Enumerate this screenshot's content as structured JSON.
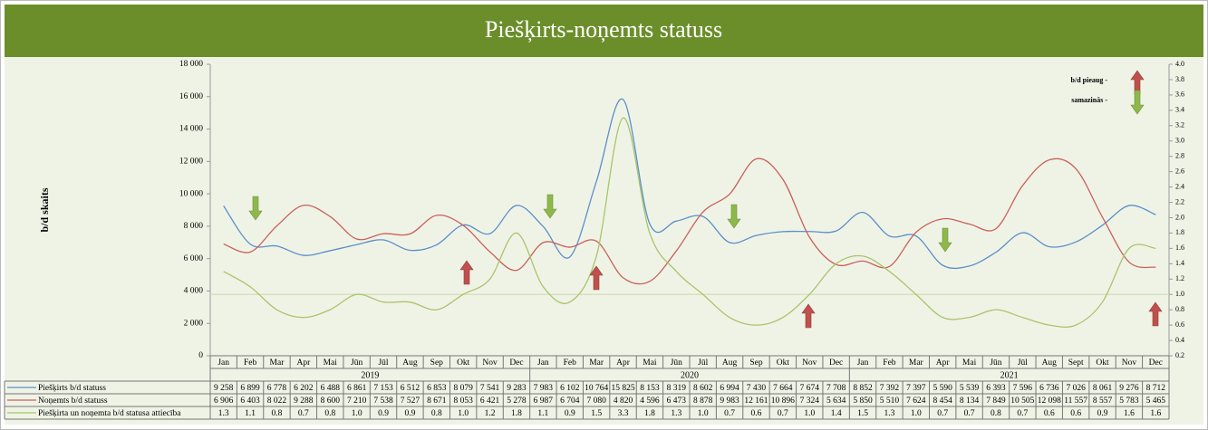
{
  "chart_data": {
    "type": "line",
    "title": "Piešķirts-noņemts statuss",
    "y_label": "b/d skaits",
    "legend_notes": [
      "b/d pieaug -",
      "samazinās -"
    ],
    "categories": [
      "Jan",
      "Feb",
      "Mar",
      "Apr",
      "Mai",
      "Jūn",
      "Jūl",
      "Aug",
      "Sep",
      "Okt",
      "Nov",
      "Dec",
      "Jan",
      "Feb",
      "Mar",
      "Apr",
      "Mai",
      "Jūn",
      "Jūl",
      "Aug",
      "Sep",
      "Okt",
      "Nov",
      "Dec",
      "Jan",
      "Feb",
      "Mar",
      "Apr",
      "Mai",
      "Jūn",
      "Jūl",
      "Aug",
      "Sept",
      "Okt",
      "Nov",
      "Dec"
    ],
    "years": [
      "2019",
      "2020",
      "2021"
    ],
    "ylim": [
      0,
      18000
    ],
    "yticks": [
      0,
      {
        "value": 2000,
        "label": "2 000"
      },
      {
        "value": 4000,
        "label": "4 000"
      },
      {
        "value": 6000,
        "label": "6 000"
      },
      {
        "value": 8000,
        "label": "8 000"
      },
      {
        "value": 10000,
        "label": "10 000"
      },
      {
        "value": 12000,
        "label": "12 000"
      },
      {
        "value": 14000,
        "label": "14 000"
      },
      {
        "value": 16000,
        "label": "16 000"
      },
      {
        "value": 18000,
        "label": "18 000"
      }
    ],
    "y2lim": [
      0.2,
      4.0
    ],
    "y2ticks": [
      0.2,
      0.4,
      0.6,
      0.8,
      {
        "value": 1,
        "label": "1.0"
      },
      1.2,
      1.4,
      1.6,
      1.8,
      {
        "value": 2,
        "label": "2.0"
      },
      2.2,
      2.4,
      2.6,
      2.8,
      {
        "value": 3,
        "label": "3.0"
      },
      3.2,
      3.4,
      3.6,
      3.8,
      {
        "value": 4,
        "label": "4.0"
      }
    ],
    "y2_reference": 1,
    "series": [
      {
        "name": "Piešķirts b/d statuss",
        "color": "#5b8fc9",
        "values": [
          9258,
          6899,
          6778,
          6202,
          6488,
          6861,
          7153,
          6512,
          6853,
          8079,
          7541,
          9283,
          7983,
          6102,
          10764,
          15825,
          8153,
          8319,
          8602,
          6994,
          7430,
          7664,
          7674,
          7708,
          8852,
          7392,
          7397,
          5590,
          5539,
          6393,
          7596,
          6736,
          7026,
          8061,
          9276,
          8712
        ],
        "value_labels": [
          "9 258",
          "6 899",
          "6 778",
          "6 202",
          "6 488",
          "6 861",
          "7 153",
          "6 512",
          "6 853",
          "8 079",
          "7 541",
          "9 283",
          "7 983",
          "6 102",
          "10 764",
          "15 825",
          "8 153",
          "8 319",
          "8 602",
          "6 994",
          "7 430",
          "7 664",
          "7 674",
          "7 708",
          "8 852",
          "7 392",
          "7 397",
          "5 590",
          "5 539",
          "6 393",
          "7 596",
          "6 736",
          "7 026",
          "8 061",
          "9 276",
          "8 712"
        ]
      },
      {
        "name": "Noņemts b/d statuss",
        "color": "#c9605a",
        "values": [
          6906,
          6403,
          8022,
          9288,
          8600,
          7210,
          7538,
          7527,
          8671,
          8053,
          6421,
          5278,
          6987,
          6704,
          7080,
          4820,
          4596,
          6473,
          8878,
          9983,
          12161,
          10896,
          7324,
          5634,
          5850,
          5510,
          7624,
          8454,
          8134,
          7849,
          10505,
          12098,
          11557,
          8557,
          5783,
          5465
        ],
        "value_labels": [
          "6 906",
          "6 403",
          "8 022",
          "9 288",
          "8 600",
          "7 210",
          "7 538",
          "7 527",
          "8 671",
          "8 053",
          "6 421",
          "5 278",
          "6 987",
          "6 704",
          "7 080",
          "4 820",
          "4 596",
          "6 473",
          "8 878",
          "9 983",
          "12 161",
          "10 896",
          "7 324",
          "5 634",
          "5 850",
          "5 510",
          "7 624",
          "8 454",
          "8 134",
          "7 849",
          "10 505",
          "12 098",
          "11 557",
          "8 557",
          "5 783",
          "5 465"
        ]
      },
      {
        "name": "Piešķirta un noņemta b/d statusa attiecība",
        "color": "#a9c46a",
        "axis": "y2",
        "values": [
          1.3,
          1.1,
          0.8,
          0.7,
          0.8,
          1,
          0.9,
          0.9,
          0.8,
          1,
          1.2,
          1.8,
          1.1,
          0.9,
          1.5,
          3.3,
          1.8,
          1.3,
          1,
          0.7,
          0.6,
          0.7,
          1,
          1.4,
          1.5,
          1.3,
          1,
          0.7,
          0.7,
          0.8,
          0.7,
          0.6,
          0.6,
          0.9,
          1.6,
          1.6
        ],
        "value_labels": [
          "1.3",
          "1.1",
          "0.8",
          "0.7",
          "0.8",
          "1.0",
          "0.9",
          "0.9",
          "0.8",
          "1.0",
          "1.2",
          "1.8",
          "1.1",
          "0.9",
          "1.5",
          "3.3",
          "1.8",
          "1.3",
          "1.0",
          "0.7",
          "0.6",
          "0.7",
          "1.0",
          "1.4",
          "1.5",
          "1.3",
          "1.0",
          "0.7",
          "0.7",
          "0.8",
          "0.7",
          "0.6",
          "0.6",
          "0.9",
          "1.6",
          "1.6"
        ]
      }
    ]
  }
}
